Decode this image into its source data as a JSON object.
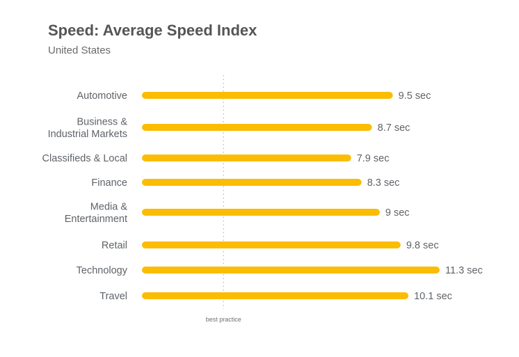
{
  "title": "Speed: Average Speed Index",
  "subtitle": "United States",
  "chart_data": {
    "type": "bar",
    "orientation": "horizontal",
    "title": "Speed: Average Speed Index",
    "subtitle": "United States",
    "categories": [
      [
        "Automotive"
      ],
      [
        "Business &",
        "Industrial Markets"
      ],
      [
        "Classifieds & Local"
      ],
      [
        "Finance"
      ],
      [
        "Media &",
        "Entertainment"
      ],
      [
        "Retail"
      ],
      [
        "Technology"
      ],
      [
        "Travel"
      ]
    ],
    "values": [
      9.5,
      8.7,
      7.9,
      8.3,
      9.0,
      9.8,
      11.3,
      10.1
    ],
    "value_labels": [
      "9.5 sec",
      "8.7 sec",
      "7.9 sec",
      "8.3 sec",
      "9 sec",
      "9.8 sec",
      "11.3 sec",
      "10.1 sec"
    ],
    "unit": "sec",
    "reference_line": {
      "value": 3,
      "label": "best practice"
    },
    "bar_color": "#fbbc04",
    "text_color": "#5f6368",
    "reference_color": "#bdbdbd",
    "xlim": [
      0,
      11.3
    ],
    "grid": false,
    "legend": "none"
  }
}
